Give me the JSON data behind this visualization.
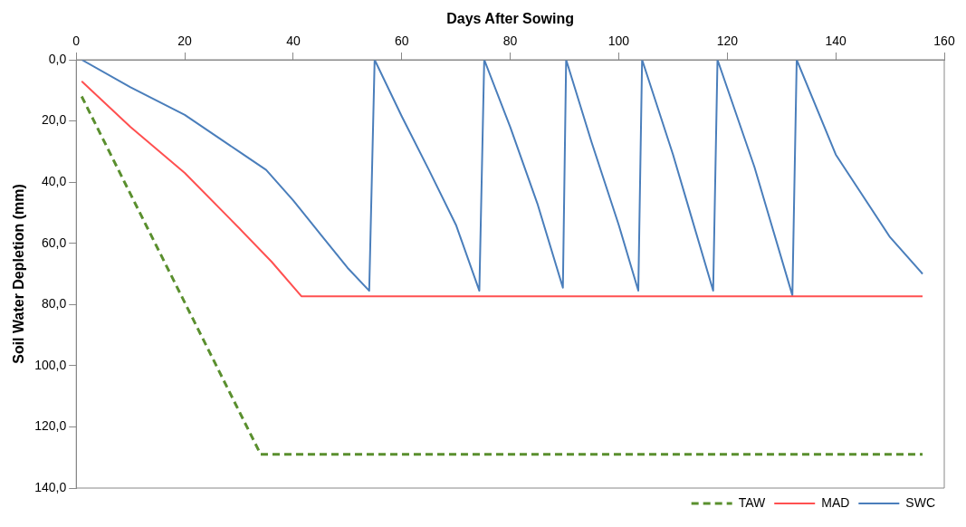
{
  "chart_data": {
    "type": "line",
    "xlabel": "Days After Sowing",
    "ylabel": "Soil Water Depletion (mm)",
    "xlim": [
      0,
      160
    ],
    "xticks": [
      0,
      20,
      40,
      60,
      80,
      100,
      120,
      140,
      160
    ],
    "ylim": [
      140,
      0
    ],
    "yticks": [
      {
        "value": 0,
        "label": "0,0"
      },
      {
        "value": 20,
        "label": "20,0"
      },
      {
        "value": 40,
        "label": "40,0"
      },
      {
        "value": 60,
        "label": "60,0"
      },
      {
        "value": 80,
        "label": "80,0"
      },
      {
        "value": 100,
        "label": "100,0"
      },
      {
        "value": 120,
        "label": "120,0"
      },
      {
        "value": 140,
        "label": "140,0"
      }
    ],
    "grid": false,
    "legend": "bottom right",
    "marker": "none",
    "series": [
      {
        "name": "TAW",
        "color": "#5a8f2e",
        "line_style": "dashed",
        "x": [
          1,
          34,
          156
        ],
        "values": [
          12,
          129,
          129
        ]
      },
      {
        "name": "MAD",
        "color": "#ff5050",
        "line_style": "solid",
        "x": [
          1,
          10,
          20,
          30,
          36,
          41.5,
          156
        ],
        "values": [
          7,
          22,
          37,
          55,
          66,
          77.3,
          77.3
        ]
      },
      {
        "name": "SWC",
        "color": "#4a7ebb",
        "line_style": "solid",
        "x": [
          1,
          10,
          20,
          30,
          35,
          40,
          45,
          50,
          54,
          55,
          60,
          65,
          70,
          74.3,
          75.2,
          80,
          85,
          89.7,
          90.3,
          95,
          100,
          103.6,
          104.3,
          110,
          117.4,
          118.2,
          125,
          132,
          132.8,
          140,
          150,
          156
        ],
        "values": [
          0,
          9,
          18,
          30,
          36,
          46,
          57,
          68,
          75.5,
          0,
          18.5,
          36,
          54,
          75.5,
          0,
          22,
          47,
          74.5,
          0,
          27,
          54,
          75.5,
          0,
          31,
          75.5,
          0,
          35,
          77,
          0,
          31,
          58,
          70
        ]
      }
    ]
  }
}
